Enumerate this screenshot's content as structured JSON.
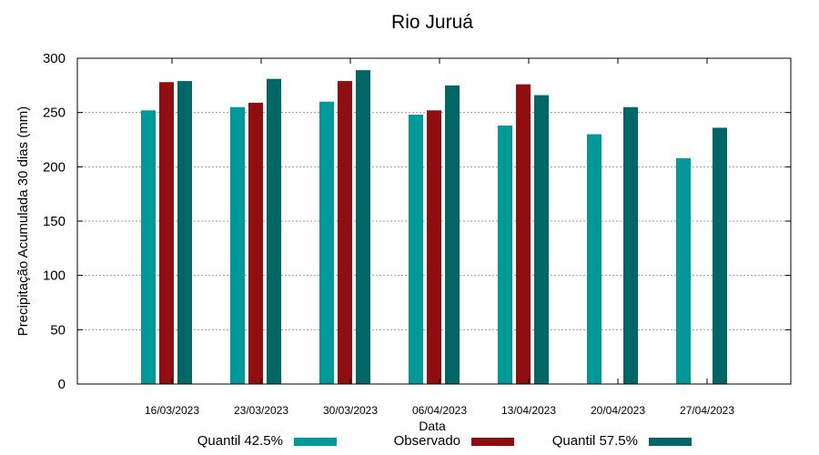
{
  "chart_data": {
    "type": "bar",
    "title": "Rio Juruá",
    "xlabel": "Data",
    "ylabel": "Precipitação Acumulada 30 dias (mm)",
    "ylim": [
      0,
      300
    ],
    "yticks": [
      0,
      50,
      100,
      150,
      200,
      250,
      300
    ],
    "grid": true,
    "legend_position": "bottom",
    "categories": [
      "16/03/2023",
      "23/03/2023",
      "30/03/2023",
      "06/04/2023",
      "13/04/2023",
      "20/04/2023",
      "27/04/2023"
    ],
    "series": [
      {
        "name": "Quantil 42.5%",
        "color": "#009999",
        "values": [
          252,
          255,
          260,
          248,
          238,
          230,
          208
        ]
      },
      {
        "name": "Observado",
        "color": "#8f0e10",
        "values": [
          278,
          259,
          279,
          252,
          276,
          null,
          null
        ]
      },
      {
        "name": "Quantil 57.5%",
        "color": "#006666",
        "values": [
          279,
          281,
          289,
          275,
          266,
          255,
          236
        ]
      }
    ]
  }
}
